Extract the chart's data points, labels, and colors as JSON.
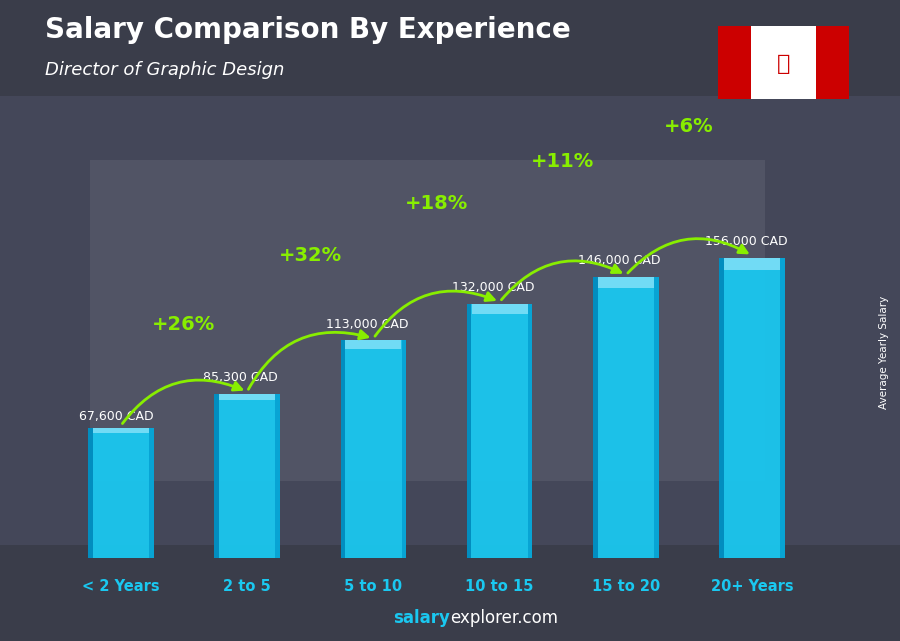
{
  "title": "Salary Comparison By Experience",
  "subtitle": "Director of Graphic Design",
  "categories": [
    "< 2 Years",
    "2 to 5",
    "5 to 10",
    "10 to 15",
    "15 to 20",
    "20+ Years"
  ],
  "values": [
    67600,
    85300,
    113000,
    132000,
    146000,
    156000
  ],
  "value_labels": [
    "67,600 CAD",
    "85,300 CAD",
    "113,000 CAD",
    "132,000 CAD",
    "146,000 CAD",
    "156,000 CAD"
  ],
  "pct_labels": [
    "+26%",
    "+32%",
    "+18%",
    "+11%",
    "+6%"
  ],
  "bar_color": "#1ac8f0",
  "bar_edge_dark": "#0088bb",
  "bar_edge_light": "#55deff",
  "background_color": "#3d4050",
  "title_color": "#ffffff",
  "subtitle_color": "#ffffff",
  "value_label_color": "#ffffff",
  "pct_color": "#88ee00",
  "xlabel_color": "#1ac8f0",
  "footer_bold_color": "#1ac8f0",
  "footer_normal_color": "#ffffff",
  "footer_salary": "salary",
  "footer_rest": "explorer.com",
  "ylabel_text": "Average Yearly Salary",
  "ylim": [
    0,
    200000
  ],
  "bar_width": 0.52
}
